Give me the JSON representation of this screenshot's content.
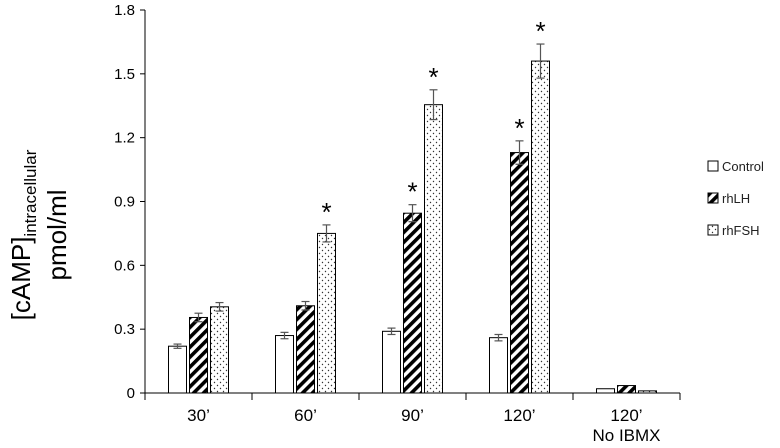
{
  "chart_data": {
    "type": "bar",
    "categories": [
      "30’",
      "60’",
      "90’",
      "120’",
      "120’"
    ],
    "category_sublabels": [
      "",
      "",
      "",
      "",
      "No IBMX"
    ],
    "ylabel_main": "[cAMP]",
    "ylabel_sub": "intracellular",
    "ylabel_unit": "pmol/ml",
    "ylim": [
      0,
      1.8
    ],
    "yticks": [
      "0",
      "0.3",
      "0.6",
      "0.9",
      "1.2",
      "1.5",
      "1.8"
    ],
    "ytick_values": [
      0,
      0.3,
      0.6,
      0.9,
      1.2,
      1.5,
      1.8
    ],
    "legend_position": "right",
    "grid": false,
    "series": [
      {
        "name": "Control",
        "pattern": "open",
        "values": [
          0.22,
          0.27,
          0.29,
          0.26,
          0.02
        ],
        "errors": [
          0.01,
          0.015,
          0.015,
          0.015,
          0
        ]
      },
      {
        "name": "rhLH",
        "pattern": "diagonal-hatch",
        "values": [
          0.355,
          0.41,
          0.845,
          1.13,
          0.035
        ],
        "errors": [
          0.02,
          0.02,
          0.04,
          0.055,
          0
        ]
      },
      {
        "name": "rhFSH",
        "pattern": "dots",
        "values": [
          0.405,
          0.75,
          1.355,
          1.56,
          0.01
        ],
        "errors": [
          0.02,
          0.04,
          0.07,
          0.08,
          0
        ]
      }
    ],
    "significance_marker": "*",
    "significance": [
      {
        "category": 1,
        "series": 2
      },
      {
        "category": 2,
        "series": 1
      },
      {
        "category": 2,
        "series": 2
      },
      {
        "category": 3,
        "series": 1
      },
      {
        "category": 3,
        "series": 2
      }
    ]
  }
}
